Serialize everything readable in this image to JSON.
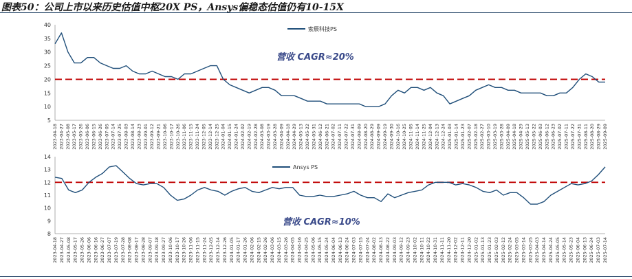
{
  "title": "图表50：公司上市以来历史估值中枢20X PS，Ansys偏稳态估值仍有10-15X",
  "colors": {
    "line": "#1f4e79",
    "ref": "#c00000",
    "anno": "#3a4a8a"
  },
  "chart_data": [
    {
      "type": "line",
      "legend": "索辰科技PS",
      "annotation": "营收 CAGR≈20%",
      "ref_line": 20,
      "ylim": [
        5,
        40
      ],
      "yticks": [
        5,
        10,
        15,
        20,
        25,
        30,
        35,
        40
      ],
      "x": [
        "2023-04-18",
        "2023-04-27",
        "2023-05-08",
        "2023-05-17",
        "2023-05-26",
        "2023-06-06",
        "2023-06-15",
        "2023-06-26",
        "2023-07-05",
        "2023-07-14",
        "2023-07-25",
        "2023-08-03",
        "2023-08-14",
        "2023-08-23",
        "2023-09-01",
        "2023-09-12",
        "2023-09-21",
        "2023-10-06",
        "2023-10-17",
        "2023-10-26",
        "2023-11-06",
        "2023-11-15",
        "2023-11-24",
        "2023-12-05",
        "2023-12-14",
        "2023-12-25",
        "2024-01-04",
        "2024-01-15",
        "2024-01-24",
        "2024-02-02",
        "2024-02-19",
        "2024-02-28",
        "2024-03-08",
        "2024-03-19",
        "2024-03-28",
        "2024-04-09",
        "2024-04-18",
        "2024-04-29",
        "2024-05-13",
        "2024-05-22",
        "2024-05-31",
        "2024-06-12",
        "2024-06-21",
        "2024-07-02",
        "2024-07-11",
        "2024-07-22",
        "2024-07-31",
        "2024-08-09",
        "2024-08-20",
        "2024-08-29",
        "2024-09-09",
        "2024-09-19",
        "2024-09-30",
        "2024-10-16",
        "2024-10-25",
        "2024-11-05",
        "2024-11-14",
        "2024-11-25",
        "2024-12-04",
        "2024-12-13",
        "2024-12-24",
        "2025-01-03",
        "2025-01-14",
        "2025-01-23",
        "2025-02-07",
        "2025-02-18",
        "2025-02-27",
        "2025-03-10",
        "2025-03-19",
        "2025-03-28",
        "2025-04-09",
        "2025-04-18",
        "2025-04-29",
        "2025-05-13",
        "2025-05-22",
        "2025-06-03",
        "2025-06-12",
        "2025-06-23",
        "2025-07-02",
        "2025-07-11",
        "2025-07-22",
        "2025-07-31",
        "2025-08-11",
        "2025-08-20",
        "2025-08-29",
        "2025-09-09"
      ],
      "values": [
        33,
        37,
        30,
        26,
        26,
        28,
        28,
        26,
        25,
        24,
        24,
        25,
        23,
        22,
        22,
        23,
        22,
        21,
        21,
        20,
        22,
        22,
        23,
        24,
        25,
        25,
        20,
        18,
        17,
        16,
        15,
        16,
        17,
        17,
        16,
        14,
        14,
        14,
        13,
        12,
        12,
        12,
        11,
        11,
        11,
        11,
        11,
        11,
        10,
        10,
        10,
        11,
        14,
        16,
        15,
        17,
        17,
        16,
        17,
        15,
        14,
        11,
        12,
        13,
        14,
        16,
        17,
        18,
        17,
        17,
        16,
        16,
        15,
        15,
        15,
        15,
        14,
        14,
        15,
        15,
        17,
        20,
        22,
        21,
        19,
        19
      ]
    },
    {
      "type": "line",
      "legend": "Ansys PS",
      "annotation": "营收 CAGR≈10%",
      "ref_line": 12,
      "ylim": [
        8,
        14
      ],
      "yticks": [
        8,
        9,
        10,
        11,
        12,
        13,
        14
      ],
      "x": [
        "2023-04-18",
        "2023-04-27",
        "2023-05-08",
        "2023-05-17",
        "2023-05-26",
        "2023-06-06",
        "2023-06-16",
        "2023-06-27",
        "2023-07-07",
        "2023-07-19",
        "2023-07-28",
        "2023-08-08",
        "2023-08-17",
        "2023-08-28",
        "2023-09-07",
        "2023-09-18",
        "2023-09-27",
        "2023-10-06",
        "2023-10-17",
        "2023-10-26",
        "2023-11-06",
        "2023-11-15",
        "2023-11-24",
        "2023-12-05",
        "2023-12-14",
        "2023-12-26",
        "2024-01-05",
        "2024-01-17",
        "2024-01-26",
        "2024-02-06",
        "2024-02-15",
        "2024-02-26",
        "2024-03-06",
        "2024-03-15",
        "2024-03-26",
        "2024-04-05",
        "2024-04-16",
        "2024-04-25",
        "2024-05-06",
        "2024-05-15",
        "2024-05-24",
        "2024-06-04",
        "2024-06-13",
        "2024-06-24",
        "2024-07-03",
        "2024-07-15",
        "2024-07-24",
        "2024-08-02",
        "2024-08-13",
        "2024-08-22",
        "2024-09-03",
        "2024-09-12",
        "2024-09-23",
        "2024-10-02",
        "2024-10-11",
        "2024-10-22",
        "2024-10-31",
        "2024-11-11",
        "2024-11-20",
        "2024-12-02",
        "2024-12-11",
        "2024-12-20",
        "2025-01-02",
        "2025-01-13",
        "2025-01-23",
        "2025-02-03",
        "2025-02-12",
        "2025-02-24",
        "2025-03-05",
        "2025-03-14",
        "2025-03-25",
        "2025-04-03",
        "2025-04-14",
        "2025-04-24",
        "2025-05-05",
        "2025-05-14",
        "2025-05-23",
        "2025-06-04",
        "2025-06-13",
        "2025-06-24",
        "2025-07-03",
        "2025-07-14"
      ],
      "values": [
        12.4,
        12.3,
        11.4,
        11.2,
        11.4,
        12.0,
        12.4,
        12.7,
        13.2,
        13.3,
        12.8,
        12.3,
        11.9,
        11.8,
        11.9,
        11.9,
        11.6,
        11.0,
        10.6,
        10.7,
        11.0,
        11.4,
        11.6,
        11.4,
        11.3,
        11.0,
        11.3,
        11.5,
        11.6,
        11.3,
        11.2,
        11.4,
        11.6,
        11.5,
        11.6,
        11.6,
        11.0,
        10.9,
        10.9,
        11.0,
        10.9,
        10.9,
        11.0,
        11.1,
        11.3,
        11.0,
        10.8,
        10.8,
        10.5,
        11.1,
        10.8,
        11.0,
        11.2,
        11.3,
        11.4,
        11.8,
        12.0,
        12.0,
        12.0,
        11.8,
        11.9,
        11.8,
        11.6,
        11.3,
        11.2,
        11.4,
        11.0,
        11.2,
        11.2,
        10.8,
        10.3,
        10.3,
        10.5,
        11.0,
        11.3,
        11.6,
        11.9,
        11.8,
        11.9,
        12.1,
        12.6,
        13.2
      ]
    }
  ]
}
